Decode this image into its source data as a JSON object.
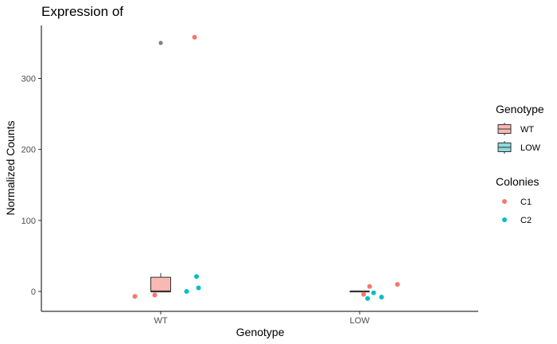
{
  "colors": {
    "WT_fill": "#F8B8B3",
    "LOW_fill": "#8ED9DD",
    "C1": "#F8766D",
    "C2": "#00BFC4",
    "outlier": "#808080",
    "box_stroke": "#333333"
  },
  "chart_data": {
    "type": "box",
    "title": "Expression of",
    "xlabel": "Genotype",
    "ylabel": "Normalized Counts",
    "categories": [
      "WT",
      "LOW"
    ],
    "ylim": [
      -28,
      375
    ],
    "yticks": [
      0,
      100,
      200,
      300
    ],
    "ytick_labels": [
      "0",
      "100",
      "200",
      "300"
    ],
    "grid": false,
    "legend_position": "right",
    "boxes": [
      {
        "category": "WT",
        "lower": 0,
        "q1": 0,
        "median": 0,
        "q3": 20,
        "upper": 26,
        "outliers": [
          350
        ]
      },
      {
        "category": "LOW",
        "lower": 0,
        "q1": 0,
        "median": 0,
        "q3": 0,
        "upper": 0,
        "outliers": []
      }
    ],
    "points": [
      {
        "category": "WT",
        "jitter": -0.13,
        "y": -7,
        "colony": "C1"
      },
      {
        "category": "WT",
        "jitter": -0.03,
        "y": -5,
        "colony": "C1"
      },
      {
        "category": "WT",
        "jitter": 0.17,
        "y": 358,
        "colony": "C1"
      },
      {
        "category": "WT",
        "jitter": 0.13,
        "y": 0,
        "colony": "C2"
      },
      {
        "category": "WT",
        "jitter": 0.18,
        "y": 21,
        "colony": "C2"
      },
      {
        "category": "WT",
        "jitter": 0.19,
        "y": 5,
        "colony": "C2"
      },
      {
        "category": "LOW",
        "jitter": 0.05,
        "y": 7,
        "colony": "C1"
      },
      {
        "category": "LOW",
        "jitter": 0.19,
        "y": 10,
        "colony": "C1"
      },
      {
        "category": "LOW",
        "jitter": 0.02,
        "y": -4,
        "colony": "C1"
      },
      {
        "category": "LOW",
        "jitter": 0.04,
        "y": -10,
        "colony": "C2"
      },
      {
        "category": "LOW",
        "jitter": 0.07,
        "y": -2,
        "colony": "C2"
      },
      {
        "category": "LOW",
        "jitter": 0.11,
        "y": -8,
        "colony": "C2"
      }
    ],
    "legends": [
      {
        "title": "Genotype",
        "kind": "box",
        "items": [
          "WT",
          "LOW"
        ]
      },
      {
        "title": "Colonies",
        "kind": "point",
        "items": [
          "C1",
          "C2"
        ]
      }
    ]
  }
}
